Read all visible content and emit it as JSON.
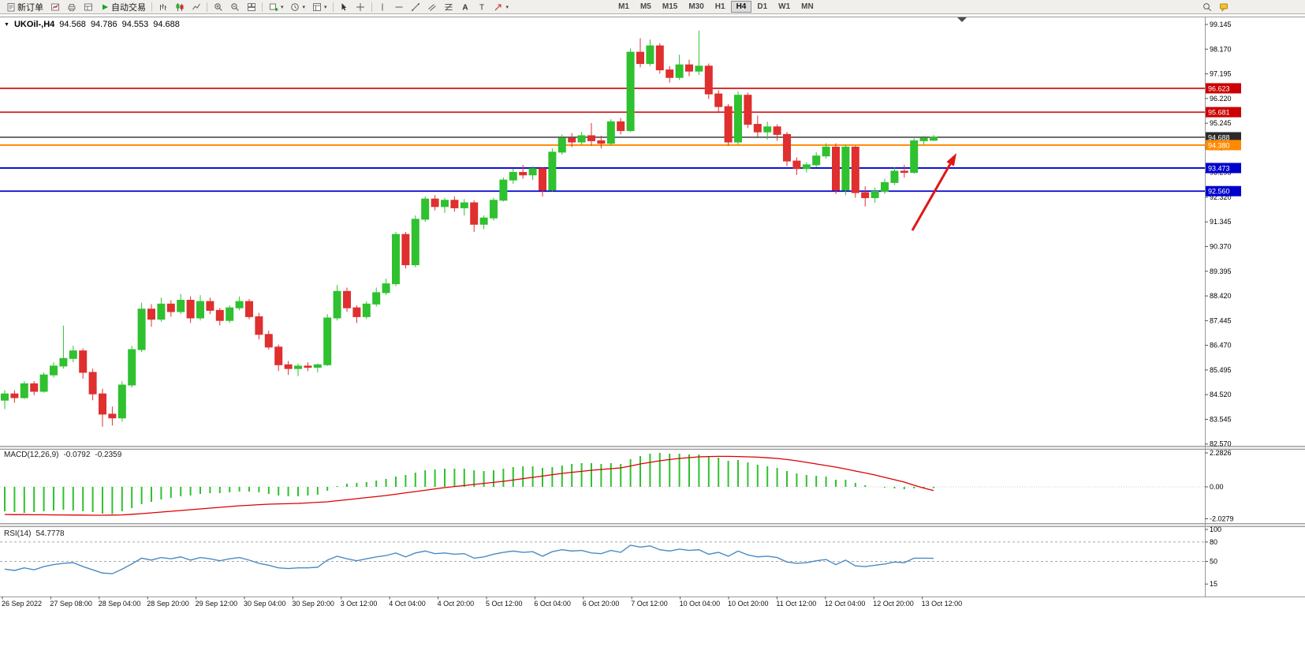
{
  "toolbar": {
    "left_buttons": [
      {
        "name": "new-order",
        "label": "新订单",
        "icon": "new-order"
      },
      {
        "name": "chart-window",
        "icon": "chart-window"
      },
      {
        "name": "print",
        "icon": "printer"
      },
      {
        "name": "market-watch",
        "icon": "market-watch"
      },
      {
        "name": "autotrading",
        "label": "自动交易",
        "icon": "play"
      },
      {
        "sep": true
      },
      {
        "name": "bar-chart",
        "icon": "bars"
      },
      {
        "name": "candlestick-chart",
        "icon": "candles"
      },
      {
        "name": "line-chart",
        "icon": "line"
      },
      {
        "sep": true
      },
      {
        "name": "zoom-in",
        "icon": "zoom-in"
      },
      {
        "name": "zoom-out",
        "icon": "zoom-out"
      },
      {
        "name": "tile-windows",
        "icon": "tile"
      },
      {
        "sep": true
      },
      {
        "name": "new-chart",
        "icon": "plus-chart",
        "dropdown": true
      },
      {
        "name": "periods",
        "icon": "clock",
        "dropdown": true
      },
      {
        "name": "templates",
        "icon": "template",
        "dropdown": true
      },
      {
        "sep": true
      },
      {
        "name": "cursor",
        "icon": "cursor"
      },
      {
        "name": "crosshair",
        "icon": "crosshair"
      },
      {
        "sep": true
      },
      {
        "name": "vertical-line",
        "icon": "vline"
      },
      {
        "name": "horizontal-line",
        "icon": "hline"
      },
      {
        "name": "trendline",
        "icon": "trendline"
      },
      {
        "name": "equidistant-channel",
        "icon": "channel"
      },
      {
        "name": "fibonacci",
        "icon": "fibo"
      },
      {
        "name": "text",
        "icon": "text-a"
      },
      {
        "name": "text-label",
        "icon": "text-t"
      },
      {
        "name": "arrows",
        "icon": "arrow-shape",
        "dropdown": true
      }
    ],
    "timeframes": [
      "M1",
      "M5",
      "M15",
      "M30",
      "H1",
      "H4",
      "D1",
      "W1",
      "MN"
    ],
    "active_timeframe": "H4",
    "right_buttons": [
      {
        "name": "search",
        "icon": "magnifier"
      },
      {
        "name": "support-chat",
        "icon": "chat"
      }
    ]
  },
  "chart": {
    "title": {
      "symbol": "UKOil-,H4",
      "open": "94.568",
      "high": "94.786",
      "low": "94.553",
      "close": "94.688"
    },
    "y_axis_labels": [
      "99.145",
      "98.170",
      "97.195",
      "96.220",
      "95.245",
      "94.270",
      "93.295",
      "92.320",
      "91.345",
      "90.370",
      "89.395",
      "88.420",
      "87.445",
      "86.470",
      "85.495",
      "84.520",
      "83.545",
      "82.570"
    ],
    "x_axis_labels": [
      "26 Sep 2022",
      "27 Sep 08:00",
      "28 Sep 04:00",
      "28 Sep 20:00",
      "29 Sep 12:00",
      "30 Sep 04:00",
      "30 Sep 20:00",
      "3 Oct 12:00",
      "4 Oct 04:00",
      "4 Oct 20:00",
      "5 Oct 12:00",
      "6 Oct 04:00",
      "6 Oct 20:00",
      "7 Oct 12:00",
      "10 Oct 04:00",
      "10 Oct 20:00",
      "11 Oct 12:00",
      "12 Oct 04:00",
      "12 Oct 20:00",
      "13 Oct 12:00"
    ],
    "hlines": [
      {
        "price": 96.623,
        "label": "96.623",
        "color": "#cc0000",
        "width": 1.6,
        "role": "resistance"
      },
      {
        "price": 95.681,
        "label": "95.681",
        "color": "#cc0000",
        "width": 1.6,
        "role": "resistance"
      },
      {
        "price": 94.688,
        "label": "94.688",
        "color": "#2b2b2b",
        "width": 1.4,
        "role": "current-price"
      },
      {
        "price": 94.38,
        "label": "94.380",
        "color": "#ff8a00",
        "width": 2,
        "role": "pivot"
      },
      {
        "price": 93.473,
        "label": "93.473",
        "color": "#0000cd",
        "width": 1.8,
        "role": "support"
      },
      {
        "price": 92.56,
        "label": "92.560",
        "color": "#0000cd",
        "width": 1.8,
        "role": "support"
      }
    ],
    "annotation_arrow": {
      "color": "#e01616",
      "direction": "up-right"
    }
  },
  "chart_data": {
    "type": "candlestick",
    "symbol": "UKOil-",
    "period": "H4",
    "up_color": "#2fc12f",
    "down_color": "#df2f2f",
    "candles_ohlc": [
      [
        84.3,
        84.7,
        83.95,
        84.55
      ],
      [
        84.55,
        84.7,
        84.2,
        84.4
      ],
      [
        84.4,
        85.05,
        84.35,
        84.95
      ],
      [
        84.95,
        85.05,
        84.5,
        84.65
      ],
      [
        84.65,
        85.4,
        84.6,
        85.3
      ],
      [
        85.3,
        85.8,
        85.2,
        85.65
      ],
      [
        85.65,
        87.25,
        85.55,
        85.95
      ],
      [
        85.95,
        86.45,
        85.8,
        86.25
      ],
      [
        86.25,
        86.35,
        85.15,
        85.4
      ],
      [
        85.4,
        85.55,
        84.3,
        84.55
      ],
      [
        84.55,
        84.75,
        83.25,
        83.75
      ],
      [
        83.75,
        84.05,
        83.3,
        83.6
      ],
      [
        83.6,
        85.05,
        83.45,
        84.9
      ],
      [
        84.9,
        86.45,
        84.8,
        86.3
      ],
      [
        86.3,
        88.15,
        86.2,
        87.9
      ],
      [
        87.9,
        88.1,
        87.2,
        87.5
      ],
      [
        87.5,
        88.35,
        87.4,
        88.1
      ],
      [
        88.1,
        88.25,
        87.6,
        87.8
      ],
      [
        87.8,
        88.5,
        87.7,
        88.25
      ],
      [
        88.25,
        88.4,
        87.35,
        87.55
      ],
      [
        87.55,
        88.45,
        87.45,
        88.2
      ],
      [
        88.2,
        88.35,
        87.7,
        87.85
      ],
      [
        87.85,
        87.95,
        87.25,
        87.45
      ],
      [
        87.45,
        88.05,
        87.35,
        87.95
      ],
      [
        87.95,
        88.4,
        87.85,
        88.2
      ],
      [
        88.2,
        88.3,
        87.5,
        87.6
      ],
      [
        87.6,
        87.75,
        86.7,
        86.9
      ],
      [
        86.9,
        87.05,
        86.3,
        86.4
      ],
      [
        86.4,
        86.5,
        85.45,
        85.7
      ],
      [
        85.7,
        85.85,
        85.3,
        85.55
      ],
      [
        85.55,
        85.75,
        85.25,
        85.65
      ],
      [
        85.65,
        85.8,
        85.45,
        85.6
      ],
      [
        85.6,
        85.75,
        85.4,
        85.7
      ],
      [
        85.7,
        87.7,
        85.65,
        87.55
      ],
      [
        87.55,
        88.85,
        87.45,
        88.6
      ],
      [
        88.6,
        88.75,
        87.8,
        87.95
      ],
      [
        87.95,
        88.05,
        87.35,
        87.6
      ],
      [
        87.6,
        88.2,
        87.5,
        88.1
      ],
      [
        88.1,
        88.75,
        88.0,
        88.55
      ],
      [
        88.55,
        89.1,
        88.45,
        88.9
      ],
      [
        88.9,
        90.95,
        88.8,
        90.85
      ],
      [
        90.85,
        90.95,
        89.5,
        89.65
      ],
      [
        89.65,
        91.6,
        89.55,
        91.45
      ],
      [
        91.45,
        92.35,
        91.35,
        92.25
      ],
      [
        92.25,
        92.4,
        91.8,
        91.95
      ],
      [
        91.95,
        92.3,
        91.7,
        92.2
      ],
      [
        92.2,
        92.35,
        91.75,
        91.9
      ],
      [
        91.9,
        92.25,
        91.6,
        92.1
      ],
      [
        92.1,
        92.2,
        90.95,
        91.25
      ],
      [
        91.25,
        91.6,
        91.05,
        91.5
      ],
      [
        91.5,
        92.3,
        91.4,
        92.2
      ],
      [
        92.2,
        93.1,
        92.15,
        93.0
      ],
      [
        93.0,
        93.45,
        92.85,
        93.3
      ],
      [
        93.3,
        93.6,
        93.05,
        93.2
      ],
      [
        93.2,
        93.55,
        93.0,
        93.45
      ],
      [
        93.45,
        93.5,
        92.35,
        92.6
      ],
      [
        92.6,
        94.25,
        92.55,
        94.1
      ],
      [
        94.1,
        94.8,
        94.0,
        94.65
      ],
      [
        94.65,
        94.85,
        94.3,
        94.5
      ],
      [
        94.5,
        94.9,
        94.4,
        94.75
      ],
      [
        94.75,
        95.25,
        94.35,
        94.55
      ],
      [
        94.55,
        94.75,
        94.25,
        94.45
      ],
      [
        94.45,
        95.4,
        94.35,
        95.3
      ],
      [
        95.3,
        95.45,
        94.8,
        94.95
      ],
      [
        94.95,
        98.2,
        94.9,
        98.05
      ],
      [
        98.05,
        98.6,
        97.45,
        97.6
      ],
      [
        97.6,
        98.55,
        97.5,
        98.3
      ],
      [
        98.3,
        98.4,
        97.2,
        97.35
      ],
      [
        97.35,
        97.5,
        96.85,
        97.05
      ],
      [
        97.05,
        97.95,
        96.95,
        97.55
      ],
      [
        97.55,
        97.75,
        97.1,
        97.3
      ],
      [
        97.3,
        98.9,
        97.15,
        97.5
      ],
      [
        97.5,
        97.6,
        96.2,
        96.4
      ],
      [
        96.4,
        96.55,
        95.7,
        95.9
      ],
      [
        95.9,
        96.0,
        94.35,
        94.5
      ],
      [
        94.5,
        96.5,
        94.4,
        96.35
      ],
      [
        96.35,
        96.45,
        95.05,
        95.2
      ],
      [
        95.2,
        95.55,
        94.7,
        94.9
      ],
      [
        94.9,
        95.3,
        94.6,
        95.1
      ],
      [
        95.1,
        95.2,
        94.55,
        94.8
      ],
      [
        94.8,
        94.9,
        93.55,
        93.75
      ],
      [
        93.75,
        93.9,
        93.2,
        93.45
      ],
      [
        93.45,
        93.7,
        93.3,
        93.6
      ],
      [
        93.6,
        94.1,
        93.5,
        93.95
      ],
      [
        93.95,
        94.45,
        93.85,
        94.3
      ],
      [
        94.3,
        94.45,
        92.45,
        92.6
      ],
      [
        92.6,
        94.4,
        92.4,
        94.3
      ],
      [
        94.3,
        94.35,
        92.3,
        92.5
      ],
      [
        92.5,
        92.75,
        91.95,
        92.3
      ],
      [
        92.3,
        92.7,
        92.1,
        92.55
      ],
      [
        92.55,
        93.05,
        92.45,
        92.9
      ],
      [
        92.9,
        93.5,
        92.8,
        93.35
      ],
      [
        93.35,
        93.6,
        93.1,
        93.3
      ],
      [
        93.3,
        94.65,
        93.25,
        94.55
      ],
      [
        94.55,
        94.75,
        94.4,
        94.65
      ],
      [
        94.568,
        94.786,
        94.553,
        94.688
      ]
    ],
    "indicators": {
      "macd": {
        "title": "MACD(12,26,9)",
        "macd_value": "-0.0792",
        "signal_value": "-0.2359",
        "histogram_color": "#2fc12f",
        "signal_color": "#dd0000",
        "scale_labels": [
          "2.2826",
          "0.00",
          "-2.0279"
        ],
        "histogram": [
          -1.55,
          -1.6,
          -1.65,
          -1.6,
          -1.55,
          -1.5,
          -1.45,
          -1.5,
          -1.55,
          -1.6,
          -1.7,
          -1.72,
          -1.55,
          -1.35,
          -1.1,
          -0.95,
          -0.8,
          -0.7,
          -0.6,
          -0.55,
          -0.45,
          -0.4,
          -0.4,
          -0.35,
          -0.3,
          -0.3,
          -0.35,
          -0.45,
          -0.55,
          -0.6,
          -0.6,
          -0.55,
          -0.5,
          -0.25,
          0.05,
          0.2,
          0.25,
          0.3,
          0.4,
          0.5,
          0.65,
          0.75,
          0.9,
          1.05,
          1.1,
          1.15,
          1.15,
          1.15,
          1.05,
          1.0,
          1.05,
          1.15,
          1.25,
          1.3,
          1.3,
          1.2,
          1.25,
          1.35,
          1.45,
          1.5,
          1.5,
          1.45,
          1.5,
          1.45,
          1.75,
          1.95,
          2.1,
          2.15,
          2.1,
          2.1,
          2.05,
          2.05,
          1.9,
          1.85,
          1.65,
          1.7,
          1.55,
          1.4,
          1.3,
          1.2,
          1.0,
          0.85,
          0.75,
          0.7,
          0.65,
          0.45,
          0.45,
          0.25,
          0.1,
          0.0,
          -0.05,
          -0.1,
          -0.15,
          -0.1,
          -0.1,
          -0.08
        ],
        "signal": [
          -1.75,
          -1.76,
          -1.76,
          -1.77,
          -1.77,
          -1.78,
          -1.78,
          -1.79,
          -1.79,
          -1.8,
          -1.8,
          -1.79,
          -1.78,
          -1.74,
          -1.7,
          -1.65,
          -1.6,
          -1.55,
          -1.5,
          -1.45,
          -1.4,
          -1.35,
          -1.3,
          -1.25,
          -1.2,
          -1.17,
          -1.13,
          -1.1,
          -1.08,
          -1.07,
          -1.05,
          -1.02,
          -0.98,
          -0.95,
          -0.88,
          -0.82,
          -0.75,
          -0.68,
          -0.62,
          -0.55,
          -0.47,
          -0.38,
          -0.3,
          -0.22,
          -0.13,
          -0.05,
          0.02,
          0.08,
          0.15,
          0.22,
          0.28,
          0.35,
          0.43,
          0.52,
          0.6,
          0.68,
          0.77,
          0.85,
          0.92,
          0.98,
          1.05,
          1.1,
          1.15,
          1.2,
          1.32,
          1.45,
          1.55,
          1.65,
          1.73,
          1.8,
          1.85,
          1.9,
          1.92,
          1.93,
          1.93,
          1.92,
          1.9,
          1.88,
          1.84,
          1.8,
          1.73,
          1.65,
          1.55,
          1.45,
          1.35,
          1.25,
          1.13,
          1.0,
          0.88,
          0.75,
          0.6,
          0.45,
          0.3,
          0.1,
          -0.08,
          -0.24
        ]
      },
      "rsi": {
        "title": "RSI(14)",
        "value": "54.7778",
        "line_color": "#4a8bc4",
        "scale_labels": [
          "100",
          "80",
          "50",
          "15"
        ],
        "levels": [
          80,
          50
        ],
        "series": [
          38,
          36,
          40,
          37,
          42,
          45,
          47,
          48,
          42,
          37,
          32,
          31,
          38,
          46,
          55,
          52,
          56,
          54,
          57,
          52,
          56,
          54,
          51,
          54,
          56,
          52,
          47,
          44,
          40,
          39,
          40,
          40,
          41,
          52,
          58,
          54,
          51,
          54,
          57,
          59,
          63,
          57,
          63,
          66,
          62,
          63,
          61,
          62,
          55,
          57,
          61,
          64,
          66,
          64,
          65,
          58,
          65,
          68,
          66,
          67,
          63,
          62,
          67,
          64,
          75,
          72,
          74,
          68,
          66,
          69,
          67,
          68,
          61,
          64,
          58,
          66,
          60,
          57,
          58,
          56,
          49,
          47,
          48,
          51,
          53,
          45,
          52,
          43,
          42,
          44,
          46,
          49,
          48,
          55,
          55,
          54.78
        ]
      }
    }
  }
}
